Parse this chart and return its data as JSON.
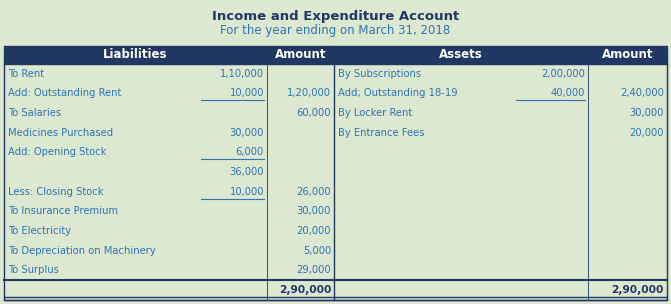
{
  "title1": "Income and Expenditure Account",
  "title2": "For the year ending on March 31, 2018",
  "header_bg": "#1F3864",
  "header_text_color": "#FFFFFF",
  "title_color": "#1F3864",
  "subtitle_color": "#2E75B6",
  "body_bg": "#DDE8D0",
  "body_text_color": "#2E75B6",
  "border_color": "#1F3864",
  "left_rows": [
    {
      "col1": "To Rent",
      "col2": "1,10,000",
      "col3": "",
      "underline2": false
    },
    {
      "col1": "Add: Outstanding Rent",
      "col2": "10,000",
      "col3": "1,20,000",
      "underline2": true
    },
    {
      "col1": "To Salaries",
      "col2": "",
      "col3": "60,000",
      "underline2": false
    },
    {
      "col1": "Medicines Purchased",
      "col2": "30,000",
      "col3": "",
      "underline2": false
    },
    {
      "col1": "Add: Opening Stock",
      "col2": "6,000",
      "col3": "",
      "underline2": true
    },
    {
      "col1": "",
      "col2": "36,000",
      "col3": "",
      "underline2": false
    },
    {
      "col1": "Less: Closing Stock",
      "col2": "10,000",
      "col3": "26,000",
      "underline2": true
    },
    {
      "col1": "To Insurance Premium",
      "col2": "",
      "col3": "30,000",
      "underline2": false
    },
    {
      "col1": "To Electricity",
      "col2": "",
      "col3": "20,000",
      "underline2": false
    },
    {
      "col1": "To Depreciation on Machinery",
      "col2": "",
      "col3": "5,000",
      "underline2": false
    },
    {
      "col1": "To Surplus",
      "col2": "",
      "col3": "29,000",
      "underline2": false
    }
  ],
  "right_rows": [
    {
      "col1": "By Subscriptions",
      "col2": "2,00,000",
      "col3": "",
      "underline2": false
    },
    {
      "col1": "Add; Outstanding 18-19",
      "col2": "40,000",
      "col3": "2,40,000",
      "underline2": true
    },
    {
      "col1": "By Locker Rent",
      "col2": "",
      "col3": "30,000",
      "underline2": false
    },
    {
      "col1": "By Entrance Fees",
      "col2": "",
      "col3": "20,000",
      "underline2": false
    },
    {
      "col1": "",
      "col2": "",
      "col3": "",
      "underline2": false
    },
    {
      "col1": "",
      "col2": "",
      "col3": "",
      "underline2": false
    },
    {
      "col1": "",
      "col2": "",
      "col3": "",
      "underline2": false
    },
    {
      "col1": "",
      "col2": "",
      "col3": "",
      "underline2": false
    },
    {
      "col1": "",
      "col2": "",
      "col3": "",
      "underline2": false
    },
    {
      "col1": "",
      "col2": "",
      "col3": "",
      "underline2": false
    },
    {
      "col1": "",
      "col2": "",
      "col3": "",
      "underline2": false
    }
  ],
  "total_left": "2,90,000",
  "total_right": "2,90,000",
  "title1_fontsize": 9.5,
  "title2_fontsize": 8.5,
  "header_fontsize": 8.5,
  "body_fontsize": 7.2
}
